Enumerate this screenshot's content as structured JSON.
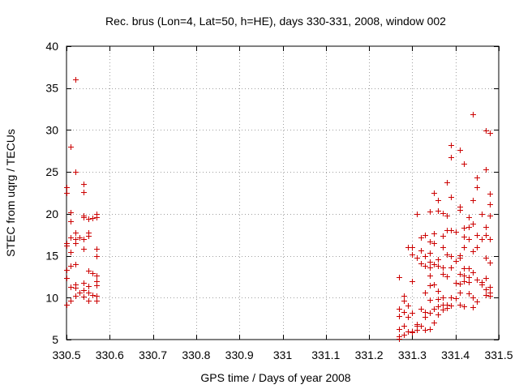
{
  "chart_data": {
    "type": "scatter",
    "title": "Rec. brus (Lon=4, Lat=50, h=HE), days 330-331, 2008, window 002",
    "xlabel": "GPS time / Days of year 2008",
    "ylabel": "STEC from uqrg / TECUs",
    "xlim": [
      330.5,
      331.5
    ],
    "ylim": [
      5,
      40
    ],
    "x_ticks": [
      330.5,
      330.6,
      330.7,
      330.8,
      330.9,
      331,
      331.1,
      331.2,
      331.3,
      331.4,
      331.5
    ],
    "x_tick_labels": [
      "330.5",
      "330.6",
      "330.7",
      "330.8",
      "330.9",
      "331",
      "331.1",
      "331.2",
      "331.3",
      "331.4",
      "331.5"
    ],
    "y_ticks": [
      5,
      10,
      15,
      20,
      25,
      30,
      35,
      40
    ],
    "y_tick_labels": [
      "5",
      "10",
      "15",
      "20",
      "25",
      "30",
      "35",
      "40"
    ],
    "grid": true,
    "marker": "plus",
    "color": "#cc0000",
    "points": [
      [
        330.5,
        23.2
      ],
      [
        330.5,
        22.5
      ],
      [
        330.5,
        16.5
      ],
      [
        330.5,
        16.2
      ],
      [
        330.5,
        13.3
      ],
      [
        330.5,
        12.3
      ],
      [
        330.5,
        9.2
      ],
      [
        330.51,
        20.2
      ],
      [
        330.51,
        19.1
      ],
      [
        330.51,
        17.2
      ],
      [
        330.51,
        15.4
      ],
      [
        330.51,
        13.8
      ],
      [
        330.51,
        11.3
      ],
      [
        330.51,
        9.6
      ],
      [
        330.51,
        28.0
      ],
      [
        330.52,
        36.0
      ],
      [
        330.52,
        25.0
      ],
      [
        330.52,
        17.8
      ],
      [
        330.52,
        17.0
      ],
      [
        330.52,
        16.5
      ],
      [
        330.52,
        14.0
      ],
      [
        330.52,
        11.6
      ],
      [
        330.52,
        11.2
      ],
      [
        330.52,
        10.2
      ],
      [
        330.53,
        17.2
      ],
      [
        330.53,
        10.6
      ],
      [
        330.54,
        23.6
      ],
      [
        330.54,
        22.6
      ],
      [
        330.54,
        19.8
      ],
      [
        330.54,
        19.6
      ],
      [
        330.54,
        17.0
      ],
      [
        330.54,
        15.8
      ],
      [
        330.54,
        11.8
      ],
      [
        330.54,
        10.9
      ],
      [
        330.54,
        10.1
      ],
      [
        330.55,
        19.4
      ],
      [
        330.55,
        17.8
      ],
      [
        330.55,
        17.4
      ],
      [
        330.55,
        13.2
      ],
      [
        330.55,
        11.4
      ],
      [
        330.55,
        10.6
      ],
      [
        330.55,
        9.6
      ],
      [
        330.56,
        19.5
      ],
      [
        330.56,
        12.9
      ],
      [
        330.56,
        10.3
      ],
      [
        330.57,
        20.0
      ],
      [
        330.57,
        19.6
      ],
      [
        330.57,
        15.8
      ],
      [
        330.57,
        15.0
      ],
      [
        330.57,
        12.6
      ],
      [
        330.57,
        12.0
      ],
      [
        330.57,
        11.5
      ],
      [
        330.57,
        10.2
      ],
      [
        330.57,
        9.6
      ],
      [
        331.27,
        12.4
      ],
      [
        331.27,
        8.7
      ],
      [
        331.27,
        7.8
      ],
      [
        331.27,
        6.3
      ],
      [
        331.27,
        5.4
      ],
      [
        331.27,
        5.1
      ],
      [
        331.28,
        10.2
      ],
      [
        331.28,
        9.6
      ],
      [
        331.28,
        8.3
      ],
      [
        331.28,
        6.6
      ],
      [
        331.28,
        5.6
      ],
      [
        331.29,
        16.0
      ],
      [
        331.29,
        9.1
      ],
      [
        331.29,
        7.7
      ],
      [
        331.29,
        6.0
      ],
      [
        331.3,
        16.0
      ],
      [
        331.3,
        15.2
      ],
      [
        331.3,
        12.0
      ],
      [
        331.3,
        8.2
      ],
      [
        331.3,
        6.0
      ],
      [
        331.3,
        5.9
      ],
      [
        331.31,
        20.0
      ],
      [
        331.31,
        14.8
      ],
      [
        331.31,
        6.8
      ],
      [
        331.31,
        6.6
      ],
      [
        331.31,
        6.2
      ],
      [
        331.32,
        17.2
      ],
      [
        331.32,
        15.6
      ],
      [
        331.32,
        14.1
      ],
      [
        331.32,
        8.7
      ],
      [
        331.32,
        6.6
      ],
      [
        331.33,
        17.5
      ],
      [
        331.33,
        15.0
      ],
      [
        331.33,
        13.8
      ],
      [
        331.33,
        10.6
      ],
      [
        331.33,
        8.3
      ],
      [
        331.33,
        7.7
      ],
      [
        331.33,
        6.2
      ],
      [
        331.34,
        20.3
      ],
      [
        331.34,
        16.7
      ],
      [
        331.34,
        15.3
      ],
      [
        331.34,
        14.3
      ],
      [
        331.34,
        13.6
      ],
      [
        331.34,
        12.6
      ],
      [
        331.34,
        11.5
      ],
      [
        331.34,
        9.7
      ],
      [
        331.34,
        8.2
      ],
      [
        331.34,
        6.3
      ],
      [
        331.35,
        22.5
      ],
      [
        331.35,
        17.7
      ],
      [
        331.35,
        16.5
      ],
      [
        331.35,
        14.0
      ],
      [
        331.35,
        11.6
      ],
      [
        331.35,
        8.7
      ],
      [
        331.35,
        7.0
      ],
      [
        331.36,
        21.6
      ],
      [
        331.36,
        20.4
      ],
      [
        331.36,
        14.6
      ],
      [
        331.36,
        13.8
      ],
      [
        331.36,
        10.8
      ],
      [
        331.36,
        9.8
      ],
      [
        331.36,
        9.0
      ],
      [
        331.36,
        8.0
      ],
      [
        331.37,
        20.1
      ],
      [
        331.37,
        17.4
      ],
      [
        331.37,
        16.0
      ],
      [
        331.37,
        13.6
      ],
      [
        331.37,
        12.8
      ],
      [
        331.37,
        10.0
      ],
      [
        331.37,
        9.2
      ],
      [
        331.37,
        8.6
      ],
      [
        331.38,
        23.8
      ],
      [
        331.38,
        19.8
      ],
      [
        331.38,
        18.1
      ],
      [
        331.38,
        15.2
      ],
      [
        331.38,
        12.5
      ],
      [
        331.38,
        9.2
      ],
      [
        331.38,
        8.8
      ],
      [
        331.39,
        28.2
      ],
      [
        331.39,
        26.8
      ],
      [
        331.39,
        22.0
      ],
      [
        331.39,
        18.1
      ],
      [
        331.39,
        15.0
      ],
      [
        331.39,
        13.6
      ],
      [
        331.39,
        10.0
      ],
      [
        331.39,
        9.1
      ],
      [
        331.4,
        17.9
      ],
      [
        331.4,
        14.4
      ],
      [
        331.4,
        11.8
      ],
      [
        331.4,
        9.9
      ],
      [
        331.41,
        27.6
      ],
      [
        331.41,
        20.9
      ],
      [
        331.41,
        20.5
      ],
      [
        331.41,
        15.1
      ],
      [
        331.41,
        14.8
      ],
      [
        331.41,
        12.8
      ],
      [
        331.41,
        11.7
      ],
      [
        331.41,
        10.6
      ],
      [
        331.41,
        9.2
      ],
      [
        331.42,
        26.0
      ],
      [
        331.42,
        18.3
      ],
      [
        331.42,
        17.3
      ],
      [
        331.42,
        16.0
      ],
      [
        331.42,
        13.5
      ],
      [
        331.42,
        12.6
      ],
      [
        331.42,
        12.0
      ],
      [
        331.42,
        9.0
      ],
      [
        331.43,
        19.6
      ],
      [
        331.43,
        18.4
      ],
      [
        331.43,
        17.0
      ],
      [
        331.43,
        13.5
      ],
      [
        331.43,
        12.4
      ],
      [
        331.43,
        11.9
      ],
      [
        331.43,
        10.5
      ],
      [
        331.44,
        31.9
      ],
      [
        331.44,
        21.6
      ],
      [
        331.44,
        18.8
      ],
      [
        331.44,
        15.5
      ],
      [
        331.44,
        13.0
      ],
      [
        331.44,
        10.0
      ],
      [
        331.44,
        8.9
      ],
      [
        331.45,
        24.3
      ],
      [
        331.45,
        23.2
      ],
      [
        331.45,
        17.5
      ],
      [
        331.45,
        16.0
      ],
      [
        331.45,
        12.2
      ],
      [
        331.45,
        9.5
      ],
      [
        331.46,
        20.0
      ],
      [
        331.46,
        17.0
      ],
      [
        331.46,
        11.9
      ],
      [
        331.46,
        11.6
      ],
      [
        331.47,
        29.9
      ],
      [
        331.47,
        25.3
      ],
      [
        331.47,
        18.4
      ],
      [
        331.47,
        17.5
      ],
      [
        331.47,
        14.8
      ],
      [
        331.47,
        12.3
      ],
      [
        331.47,
        11.0
      ],
      [
        331.47,
        10.3
      ],
      [
        331.48,
        29.7
      ],
      [
        331.48,
        22.4
      ],
      [
        331.48,
        21.1
      ],
      [
        331.48,
        19.8
      ],
      [
        331.48,
        17.0
      ],
      [
        331.48,
        14.2
      ],
      [
        331.48,
        11.3
      ],
      [
        331.48,
        10.2
      ],
      [
        331.48,
        10.6
      ]
    ]
  }
}
